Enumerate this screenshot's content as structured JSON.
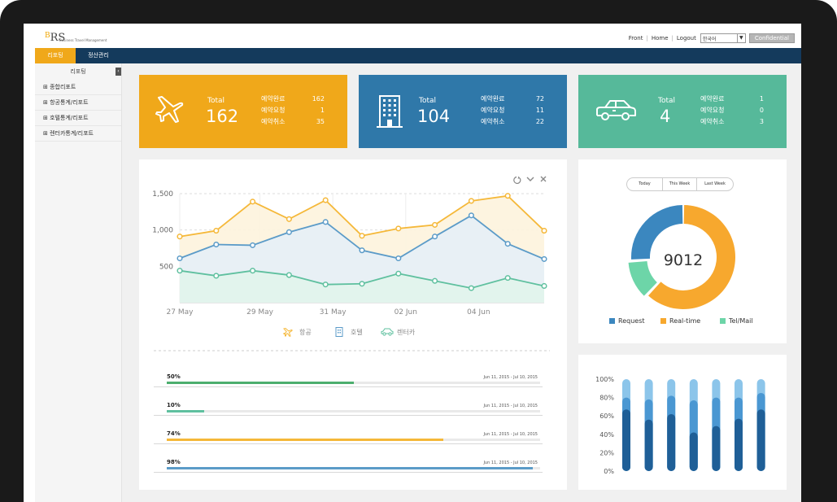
{
  "header": {
    "logo_text": "RS",
    "logo_accent": "B",
    "logo_subtitle": "Business Travel Management",
    "links": [
      "Front",
      "Home",
      "Logout"
    ],
    "language": "한국어",
    "confidential_label": "Confidential"
  },
  "nav": {
    "tabs": [
      {
        "label": "리포팅",
        "active": true
      },
      {
        "label": "정산관리",
        "active": false
      }
    ]
  },
  "sidebar": {
    "title": "리포팅",
    "collapse_glyph": "‹",
    "items": [
      {
        "label": "⊞ 종합리포트"
      },
      {
        "label": "⊞ 항공통계/리포트"
      },
      {
        "label": "⊞ 호텔통계/리포트"
      },
      {
        "label": "⊞ 렌터카통계/리포트"
      }
    ]
  },
  "cards": [
    {
      "name": "flight",
      "icon": "airplane-icon",
      "color": "#f0a81a",
      "total_label": "Total",
      "total": "162",
      "stats": [
        {
          "k": "예약완료",
          "v": "162"
        },
        {
          "k": "예약요청",
          "v": "1"
        },
        {
          "k": "예약취소",
          "v": "35"
        }
      ]
    },
    {
      "name": "hotel",
      "icon": "building-icon",
      "color": "#2f78a9",
      "total_label": "Total",
      "total": "104",
      "stats": [
        {
          "k": "예약완료",
          "v": "72"
        },
        {
          "k": "예약요청",
          "v": "11"
        },
        {
          "k": "예약취소",
          "v": "22"
        }
      ]
    },
    {
      "name": "rentcar",
      "icon": "car-icon",
      "color": "#56b99a",
      "total_label": "Total",
      "total": "4",
      "stats": [
        {
          "k": "예약완료",
          "v": "1"
        },
        {
          "k": "예약요청",
          "v": "0"
        },
        {
          "k": "예약취소",
          "v": "3"
        }
      ]
    }
  ],
  "chart_data": [
    {
      "type": "line",
      "x_tick_labels": [
        "27 May",
        "29 May",
        "31 May",
        "02 Jun",
        "04 Jun"
      ],
      "y_tick_labels": [
        "500",
        "1,000",
        "1,500"
      ],
      "ylim": [
        0,
        1500
      ],
      "grid": true,
      "series": [
        {
          "name": "항공",
          "color": "#f5b839",
          "icon": "airplane-icon",
          "values": [
            910,
            990,
            1390,
            1150,
            1410,
            920,
            1020,
            1070,
            1400,
            1470,
            990
          ]
        },
        {
          "name": "호텔",
          "color": "#5b9bc8",
          "icon": "building-icon",
          "values": [
            610,
            800,
            790,
            970,
            1110,
            720,
            610,
            910,
            1200,
            810,
            600
          ]
        },
        {
          "name": "렌터카",
          "color": "#5fc09f",
          "icon": "car-icon",
          "values": [
            440,
            370,
            440,
            380,
            250,
            260,
            400,
            300,
            200,
            340,
            230
          ]
        }
      ]
    },
    {
      "type": "pie",
      "center_value": "9012",
      "filters": [
        "Today",
        "This Week",
        "Last Week"
      ],
      "slices": [
        {
          "name": "Request",
          "value": 26,
          "color": "#3b87bf"
        },
        {
          "name": "Real-time",
          "value": 62,
          "color": "#f7a82e"
        },
        {
          "name": "Tel/Mail",
          "value": 12,
          "color": "#6dd5a8"
        }
      ]
    },
    {
      "type": "bar",
      "y_tick_labels": [
        "0%",
        "20%",
        "40%",
        "60%",
        "80%",
        "100%"
      ],
      "ylim": [
        0,
        100
      ],
      "bars": [
        {
          "dark": 67,
          "mid": 80
        },
        {
          "dark": 56,
          "mid": 78
        },
        {
          "dark": 62,
          "mid": 82
        },
        {
          "dark": 42,
          "mid": 77
        },
        {
          "dark": 49,
          "mid": 80
        },
        {
          "dark": 57,
          "mid": 80
        },
        {
          "dark": 67,
          "mid": 85
        }
      ]
    }
  ],
  "progress": [
    {
      "pct_label": "50%",
      "value": 50,
      "date": "Jun 11, 2015 - Jul 10, 2015",
      "color": "#4cae6e"
    },
    {
      "pct_label": "10%",
      "value": 10,
      "date": "Jun 11, 2015 - Jul 10, 2015",
      "color": "#5fc09f"
    },
    {
      "pct_label": "74%",
      "value": 74,
      "date": "Jun 11, 2015 - Jul 10, 2015",
      "color": "#f5b839"
    },
    {
      "pct_label": "98%",
      "value": 98,
      "date": "Jun 11, 2015 - Jul 10, 2015",
      "color": "#5b9bc8"
    }
  ],
  "panel_icons": [
    "refresh-icon",
    "chevron-down-icon",
    "close-icon"
  ]
}
